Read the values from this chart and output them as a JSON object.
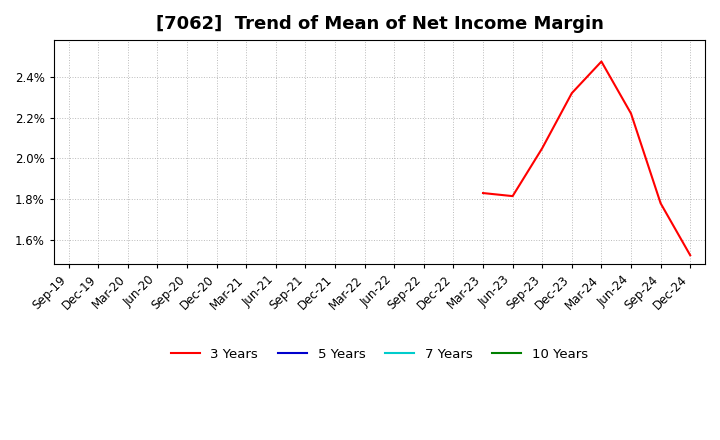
{
  "title": "[7062]  Trend of Mean of Net Income Margin",
  "x_labels": [
    "Sep-19",
    "Dec-19",
    "Mar-20",
    "Jun-20",
    "Sep-20",
    "Dec-20",
    "Mar-21",
    "Jun-21",
    "Sep-21",
    "Dec-21",
    "Mar-22",
    "Jun-22",
    "Sep-22",
    "Dec-22",
    "Mar-23",
    "Jun-23",
    "Sep-23",
    "Dec-23",
    "Mar-24",
    "Jun-24",
    "Sep-24",
    "Dec-24"
  ],
  "series_3y_x_idx": [
    14,
    15,
    16,
    17,
    18,
    19,
    20,
    21
  ],
  "series_3y_y": [
    1.83,
    1.815,
    2.05,
    2.32,
    2.475,
    2.22,
    1.78,
    1.525
  ],
  "line_colors": {
    "3y": "#ff0000",
    "5y": "#0000cd",
    "7y": "#00cccc",
    "10y": "#008000"
  },
  "legend_labels": [
    "3 Years",
    "5 Years",
    "7 Years",
    "10 Years"
  ],
  "ylim_min": 1.48,
  "ylim_max": 2.58,
  "yticks": [
    1.6,
    1.8,
    2.0,
    2.2,
    2.4
  ],
  "background_color": "#ffffff",
  "plot_bg_color": "#ffffff",
  "grid_color": "#bbbbbb",
  "title_fontsize": 13,
  "axis_fontsize": 8.5
}
